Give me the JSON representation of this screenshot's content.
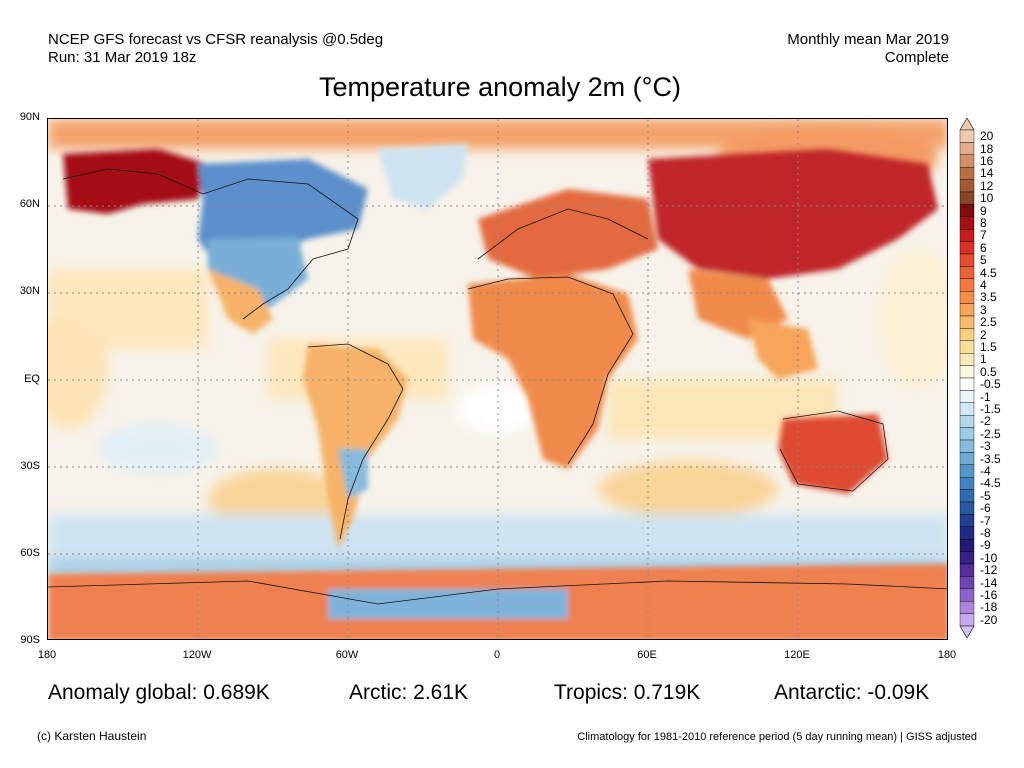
{
  "header": {
    "line1_left": "NCEP GFS forecast vs CFSR reanalysis @0.5deg",
    "line2_left": "Run: 31 Mar 2019 18z",
    "line1_right": "Monthly mean Mar 2019",
    "line2_right": "Complete"
  },
  "title": "Temperature anomaly 2m (°C)",
  "map": {
    "projection": "equirectangular",
    "lat_labels": [
      "90N",
      "60N",
      "30N",
      "EQ",
      "30S",
      "60S",
      "90S"
    ],
    "lon_labels": [
      "180",
      "120W",
      "60W",
      "0",
      "60E",
      "120E",
      "180"
    ],
    "gridlines": true,
    "coastlines": true,
    "country_borders": true,
    "regions": [
      {
        "name": "Alaska / Beaufort Sea",
        "anomaly": "strong positive",
        "color": "#a50f15"
      },
      {
        "name": "Central / Western Canada & Northern US Plains",
        "anomaly": "negative",
        "color": "#6a9fd0"
      },
      {
        "name": "Greenland",
        "anomaly": "negative",
        "color": "#5b8fcc"
      },
      {
        "name": "Europe",
        "anomaly": "positive",
        "color": "#e36a3f"
      },
      {
        "name": "Siberia / Russia",
        "anomaly": "strong positive",
        "color": "#c0262b"
      },
      {
        "name": "North & East Africa",
        "anomaly": "positive",
        "color": "#f08a4b"
      },
      {
        "name": "South America",
        "anomaly": "positive",
        "color": "#f5b267"
      },
      {
        "name": "Australia",
        "anomaly": "positive",
        "color": "#de4b32"
      },
      {
        "name": "Southern Ocean",
        "anomaly": "negative",
        "color": "#a9cde6"
      },
      {
        "name": "Antarctica (coast)",
        "anomaly": "mixed",
        "color": "#ef8050"
      }
    ]
  },
  "colorbar": {
    "labels": [
      "20",
      "18",
      "16",
      "14",
      "12",
      "10",
      "9",
      "8",
      "7",
      "6",
      "5",
      "4.5",
      "4",
      "3.5",
      "3",
      "2.5",
      "2",
      "1.5",
      "1",
      "0.5",
      "-0.5",
      "-1",
      "-1.5",
      "-2",
      "-2.5",
      "-3",
      "-3.5",
      "-4",
      "-4.5",
      "-5",
      "-6",
      "-7",
      "-8",
      "-9",
      "-10",
      "-12",
      "-14",
      "-16",
      "-18",
      "-20"
    ],
    "colors": [
      "#efc9b0",
      "#e2ad8c",
      "#d39068",
      "#b87048",
      "#a45a36",
      "#8a4426",
      "#7b0c10",
      "#a50f15",
      "#c41f1d",
      "#d83125",
      "#e54b30",
      "#ec6238",
      "#f07a40",
      "#f48f4b",
      "#f6a55a",
      "#f8ba6c",
      "#fad07f",
      "#fbdf99",
      "#fcebb9",
      "#fef8e1",
      "#ffffff",
      "#e8f3fa",
      "#d0e7f4",
      "#b7d8ec",
      "#9ecbe5",
      "#86bbdc",
      "#6eaad3",
      "#5697c9",
      "#4382be",
      "#336db1",
      "#2a58a3",
      "#233f93",
      "#1f2b84",
      "#241a74",
      "#3a1f85",
      "#532f9b",
      "#6c45b2",
      "#8a62c9",
      "#a884dd",
      "#c6a9ef"
    ],
    "top_arrow_color": "#efc9b0",
    "bottom_arrow_color": "#d2c2f2"
  },
  "stats": {
    "global": "Anomaly global: 0.689K",
    "arctic": "Arctic: 2.61K",
    "tropics": "Tropics: 0.719K",
    "antarctic": "Antarctic: -0.09K"
  },
  "footer": {
    "credit": "(c) Karsten Haustein",
    "note": "Climatology for 1981-2010 reference period (5 day running mean) | GISS adjusted"
  }
}
